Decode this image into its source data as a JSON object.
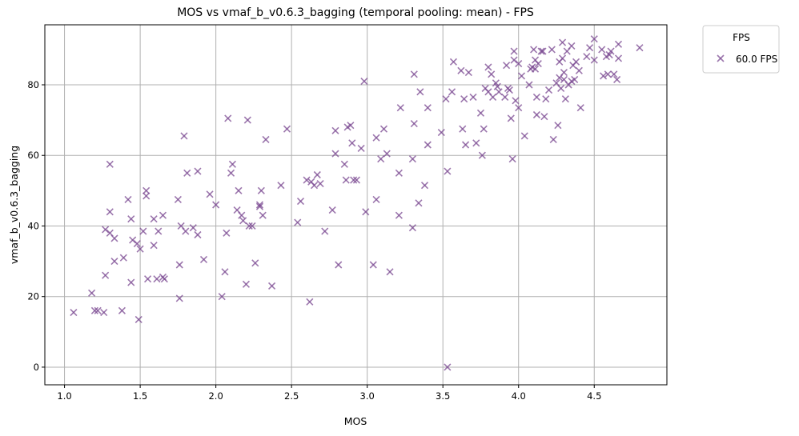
{
  "chart_data": {
    "type": "scatter",
    "title": "MOS vs vmaf_b_v0.6.3_bagging (temporal pooling: mean) - FPS",
    "xlabel": "MOS",
    "ylabel": "vmaf_b_v0.6.3_bagging",
    "xlim": [
      0.87,
      4.98
    ],
    "ylim": [
      -5,
      97
    ],
    "xticks": [
      1.0,
      1.5,
      2.0,
      2.5,
      3.0,
      3.5,
      4.0,
      4.5
    ],
    "xtick_labels": [
      "1.0",
      "1.5",
      "2.0",
      "2.5",
      "3.0",
      "3.5",
      "4.0",
      "4.5"
    ],
    "yticks": [
      0,
      20,
      40,
      60,
      80
    ],
    "ytick_labels": [
      "0",
      "20",
      "40",
      "60",
      "80"
    ],
    "grid": true,
    "legend": {
      "title": "FPS",
      "placement": "outside-top-right"
    },
    "marker": "x",
    "series": [
      {
        "name": "60.0 FPS",
        "color": "#7b4a92",
        "points": [
          [
            1.06,
            15.5
          ],
          [
            1.18,
            21
          ],
          [
            1.2,
            16
          ],
          [
            1.22,
            16
          ],
          [
            1.26,
            15.5
          ],
          [
            1.27,
            26
          ],
          [
            1.27,
            39
          ],
          [
            1.3,
            57.5
          ],
          [
            1.3,
            44
          ],
          [
            1.3,
            38
          ],
          [
            1.33,
            30
          ],
          [
            1.33,
            36.5
          ],
          [
            1.38,
            16
          ],
          [
            1.39,
            31
          ],
          [
            1.42,
            47.5
          ],
          [
            1.44,
            42
          ],
          [
            1.44,
            24
          ],
          [
            1.45,
            36
          ],
          [
            1.48,
            35
          ],
          [
            1.49,
            13.5
          ],
          [
            1.5,
            33.5
          ],
          [
            1.52,
            38.5
          ],
          [
            1.54,
            50
          ],
          [
            1.54,
            48.5
          ],
          [
            1.55,
            25
          ],
          [
            1.59,
            42
          ],
          [
            1.59,
            34.5
          ],
          [
            1.61,
            25
          ],
          [
            1.62,
            38.5
          ],
          [
            1.65,
            43
          ],
          [
            1.65,
            25.5
          ],
          [
            1.66,
            25
          ],
          [
            1.75,
            47.5
          ],
          [
            1.76,
            29
          ],
          [
            1.76,
            19.5
          ],
          [
            1.77,
            40
          ],
          [
            1.79,
            65.5
          ],
          [
            1.8,
            38.5
          ],
          [
            1.81,
            55
          ],
          [
            1.85,
            39.5
          ],
          [
            1.88,
            55.5
          ],
          [
            1.88,
            37.5
          ],
          [
            1.92,
            30.5
          ],
          [
            1.96,
            49
          ],
          [
            2.0,
            46
          ],
          [
            2.04,
            20
          ],
          [
            2.06,
            27
          ],
          [
            2.07,
            38
          ],
          [
            2.08,
            70.5
          ],
          [
            2.1,
            55
          ],
          [
            2.11,
            57.5
          ],
          [
            2.14,
            44.5
          ],
          [
            2.15,
            50
          ],
          [
            2.17,
            43
          ],
          [
            2.18,
            41.5
          ],
          [
            2.2,
            23.5
          ],
          [
            2.21,
            70
          ],
          [
            2.22,
            40
          ],
          [
            2.24,
            40
          ],
          [
            2.26,
            29.5
          ],
          [
            2.29,
            45.5
          ],
          [
            2.29,
            46
          ],
          [
            2.3,
            50
          ],
          [
            2.31,
            43
          ],
          [
            2.33,
            64.5
          ],
          [
            2.37,
            23
          ],
          [
            2.43,
            51.5
          ],
          [
            2.47,
            67.5
          ],
          [
            2.54,
            41
          ],
          [
            2.56,
            47
          ],
          [
            2.6,
            53
          ],
          [
            2.62,
            18.5
          ],
          [
            2.63,
            52.5
          ],
          [
            2.65,
            51.5
          ],
          [
            2.67,
            54.5
          ],
          [
            2.69,
            52
          ],
          [
            2.72,
            38.5
          ],
          [
            2.77,
            44.5
          ],
          [
            2.79,
            60.5
          ],
          [
            2.79,
            67
          ],
          [
            2.81,
            29
          ],
          [
            2.85,
            57.5
          ],
          [
            2.86,
            53
          ],
          [
            2.87,
            68
          ],
          [
            2.89,
            68.5
          ],
          [
            2.9,
            63.5
          ],
          [
            2.91,
            53
          ],
          [
            2.93,
            53
          ],
          [
            2.96,
            62
          ],
          [
            2.98,
            81
          ],
          [
            2.99,
            44
          ],
          [
            3.04,
            29
          ],
          [
            3.06,
            47.5
          ],
          [
            3.06,
            65
          ],
          [
            3.09,
            59
          ],
          [
            3.11,
            67.5
          ],
          [
            3.13,
            60.5
          ],
          [
            3.15,
            27
          ],
          [
            3.21,
            55
          ],
          [
            3.21,
            43
          ],
          [
            3.22,
            73.5
          ],
          [
            3.3,
            39.5
          ],
          [
            3.3,
            59
          ],
          [
            3.31,
            69
          ],
          [
            3.31,
            83
          ],
          [
            3.34,
            46.5
          ],
          [
            3.35,
            78
          ],
          [
            3.38,
            51.5
          ],
          [
            3.4,
            63
          ],
          [
            3.4,
            73.5
          ],
          [
            3.49,
            66.5
          ],
          [
            3.52,
            76
          ],
          [
            3.53,
            55.5
          ],
          [
            3.53,
            0
          ],
          [
            3.56,
            78
          ],
          [
            3.57,
            86.5
          ],
          [
            3.62,
            84
          ],
          [
            3.63,
            67.5
          ],
          [
            3.64,
            76
          ],
          [
            3.65,
            63
          ],
          [
            3.67,
            83.5
          ],
          [
            3.7,
            76.5
          ],
          [
            3.72,
            63.5
          ],
          [
            3.75,
            72
          ],
          [
            3.76,
            60
          ],
          [
            3.77,
            67.5
          ],
          [
            3.78,
            79
          ],
          [
            3.8,
            85
          ],
          [
            3.8,
            78
          ],
          [
            3.82,
            83
          ],
          [
            3.83,
            76.5
          ],
          [
            3.85,
            80.5
          ],
          [
            3.86,
            79.5
          ],
          [
            3.87,
            78
          ],
          [
            3.91,
            76.5
          ],
          [
            3.92,
            85.5
          ],
          [
            3.93,
            79
          ],
          [
            3.94,
            78.5
          ],
          [
            3.95,
            70.5
          ],
          [
            3.96,
            59
          ],
          [
            3.97,
            87
          ],
          [
            3.97,
            89.5
          ],
          [
            3.98,
            75.5
          ],
          [
            4.0,
            73.5
          ],
          [
            4.0,
            86
          ],
          [
            4.02,
            82.5
          ],
          [
            4.04,
            65.5
          ],
          [
            4.07,
            80
          ],
          [
            4.08,
            84.5
          ],
          [
            4.09,
            85
          ],
          [
            4.1,
            90
          ],
          [
            4.11,
            87
          ],
          [
            4.11,
            84.5
          ],
          [
            4.12,
            71.5
          ],
          [
            4.12,
            76.5
          ],
          [
            4.13,
            86
          ],
          [
            4.15,
            89.5
          ],
          [
            4.16,
            89.5
          ],
          [
            4.17,
            71
          ],
          [
            4.18,
            76
          ],
          [
            4.2,
            78.5
          ],
          [
            4.22,
            90
          ],
          [
            4.23,
            64.5
          ],
          [
            4.25,
            80.5
          ],
          [
            4.26,
            68.5
          ],
          [
            4.27,
            82
          ],
          [
            4.27,
            86.5
          ],
          [
            4.28,
            79
          ],
          [
            4.29,
            92
          ],
          [
            4.29,
            87.5
          ],
          [
            4.3,
            81.5
          ],
          [
            4.3,
            83.5
          ],
          [
            4.31,
            76
          ],
          [
            4.32,
            89.5
          ],
          [
            4.33,
            80
          ],
          [
            4.35,
            81
          ],
          [
            4.35,
            91
          ],
          [
            4.36,
            85.5
          ],
          [
            4.37,
            81.5
          ],
          [
            4.38,
            86.5
          ],
          [
            4.4,
            84
          ],
          [
            4.41,
            73.5
          ],
          [
            4.45,
            88
          ],
          [
            4.47,
            90.5
          ],
          [
            4.5,
            93
          ],
          [
            4.5,
            87
          ],
          [
            4.55,
            90
          ],
          [
            4.56,
            82.5
          ],
          [
            4.58,
            88
          ],
          [
            4.59,
            83
          ],
          [
            4.6,
            88.5
          ],
          [
            4.61,
            89.5
          ],
          [
            4.63,
            83
          ],
          [
            4.65,
            81.5
          ],
          [
            4.66,
            87.5
          ],
          [
            4.66,
            91.5
          ],
          [
            4.8,
            90.5
          ]
        ]
      }
    ]
  }
}
